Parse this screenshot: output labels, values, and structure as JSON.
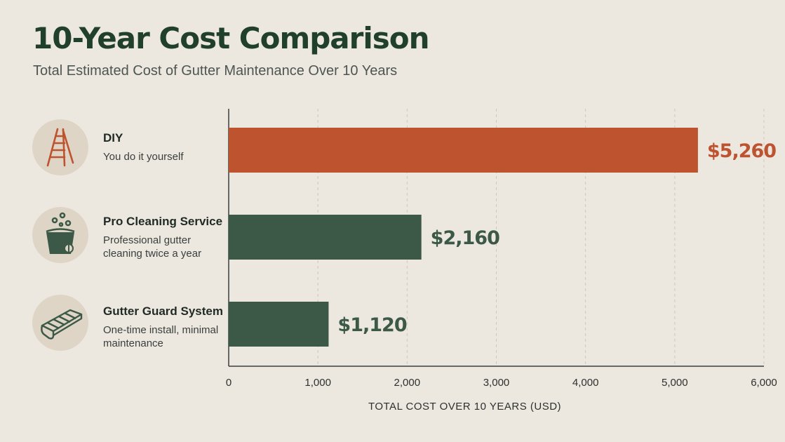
{
  "title": "10-Year Cost Comparison",
  "subtitle": "Total Estimated Cost of Gutter Maintenance Over 10 Years",
  "categories": [
    {
      "name": "DIY",
      "description": "You do it yourself",
      "icon": "ladder-icon",
      "color": "#BD532F",
      "value_label": "$5,260"
    },
    {
      "name": "Pro Cleaning Service",
      "description": "Professional gutter cleaning twice a year",
      "icon": "bucket-icon",
      "color": "#3C5846",
      "value_label": "$2,160"
    },
    {
      "name": "Gutter Guard System",
      "description": "One-time install, minimal maintenance",
      "icon": "gutter-guard-icon",
      "color": "#3C5846",
      "value_label": "$1,120"
    }
  ],
  "chart_data": {
    "type": "bar",
    "orientation": "horizontal",
    "categories": [
      "DIY",
      "Pro Cleaning Service",
      "Gutter Guard System"
    ],
    "values": [
      5260,
      2160,
      1120
    ],
    "value_labels": [
      "$5,260",
      "$2,160",
      "$1,120"
    ],
    "xlabel": "TOTAL COST OVER 10 YEARS (USD)",
    "xlim": [
      0,
      6000
    ],
    "xticks": [
      0,
      1000,
      2000,
      3000,
      4000,
      5000,
      6000
    ],
    "xtick_labels": [
      "0",
      "1,000",
      "2,000",
      "3,000",
      "4,000",
      "5,000",
      "6,000"
    ],
    "grid": "vertical dashed",
    "colors": [
      "#BD532F",
      "#3C5846",
      "#3C5846"
    ]
  }
}
